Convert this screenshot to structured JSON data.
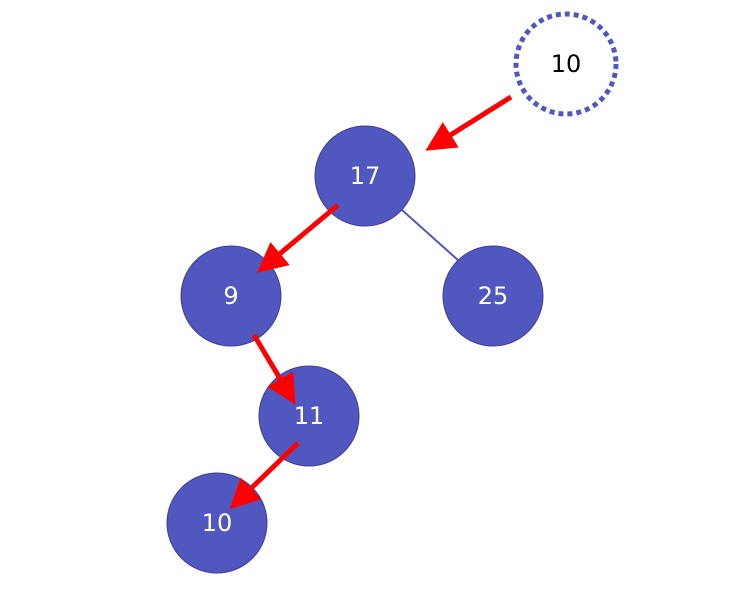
{
  "colors": {
    "node_fill": "#5058BF",
    "node_stroke": "#3A3F9A",
    "node_text": "#ffffff",
    "insert_stroke": "#5058BF",
    "insert_text": "#000000",
    "edge": "#5058BF",
    "arrow": "#FF0000",
    "background": "#ffffff"
  },
  "insert_node": {
    "label": "10"
  },
  "tree": {
    "root": {
      "label": "17"
    },
    "left": {
      "label": "9"
    },
    "right": {
      "label": "25"
    },
    "left_right": {
      "label": "11"
    },
    "new_leaf": {
      "label": "10"
    }
  }
}
